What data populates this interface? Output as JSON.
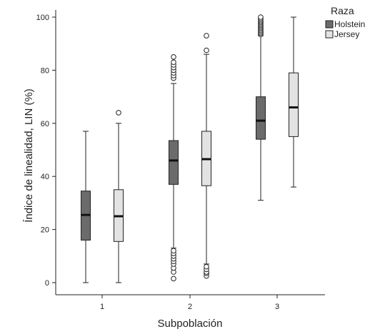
{
  "chart_data": {
    "type": "boxplot",
    "xlabel": "Subpoblación",
    "ylabel": "Índice de linealidad, LIN (%)",
    "categories": [
      "1",
      "2",
      "3"
    ],
    "ylim": [
      0,
      100
    ],
    "yticks": [
      0,
      20,
      40,
      60,
      80,
      100
    ],
    "grid": false,
    "legend": {
      "title": "Raza",
      "placement": "top-right",
      "entries": [
        {
          "name": "Holstein",
          "color": "#6b6b6b"
        },
        {
          "name": "Jersey",
          "color": "#e3e3e3"
        }
      ]
    },
    "series": [
      {
        "name": "Holstein",
        "color": "#6b6b6b",
        "boxes": [
          {
            "category": "1",
            "min": 0,
            "q1": 16,
            "median": 25.5,
            "q3": 34.5,
            "max": 57,
            "outliers": []
          },
          {
            "category": "2",
            "min": 13,
            "q1": 37,
            "median": 46,
            "q3": 53.5,
            "max": 75,
            "outliers": [
              1.5,
              4,
              5.5,
              7,
              8,
              9,
              10,
              11,
              12,
              77,
              78,
              79,
              80,
              81,
              82,
              83,
              85
            ]
          },
          {
            "category": "3",
            "min": 31,
            "q1": 54,
            "median": 61,
            "q3": 70,
            "max": 93,
            "outliers": [
              93.5,
              94,
              94.5,
              95,
              95.5,
              96,
              96.5,
              97,
              97.5,
              98,
              98.5,
              99,
              99.5,
              100
            ]
          }
        ]
      },
      {
        "name": "Jersey",
        "color": "#e3e3e3",
        "boxes": [
          {
            "category": "1",
            "min": 0,
            "q1": 15.5,
            "median": 25,
            "q3": 35,
            "max": 60,
            "outliers": [
              64
            ]
          },
          {
            "category": "2",
            "min": 7,
            "q1": 36.5,
            "median": 46.5,
            "q3": 57,
            "max": 86,
            "outliers": [
              2.5,
              3.5,
              4,
              5,
              6,
              87.5,
              93
            ]
          },
          {
            "category": "3",
            "min": 36,
            "q1": 55,
            "median": 66,
            "q3": 79,
            "max": 100,
            "outliers": []
          }
        ]
      }
    ]
  }
}
